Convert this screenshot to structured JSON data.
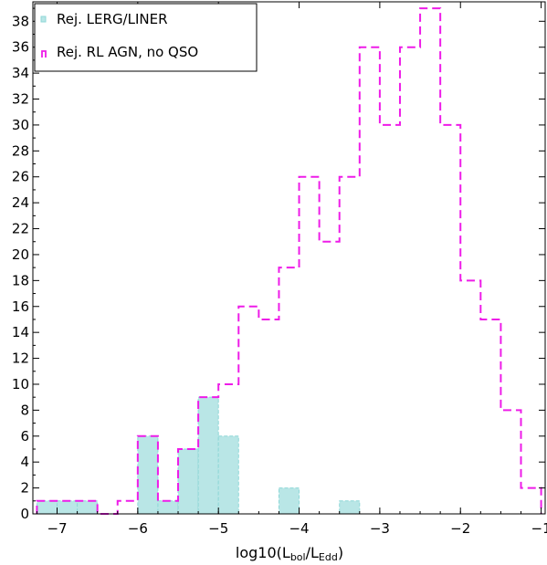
{
  "chart_data": {
    "type": "histogram",
    "xlabel": {
      "main": "log10(L",
      "sub1": "bol",
      "mid": "/L",
      "sub2": "Edd",
      "end": ")"
    },
    "ylabel": "",
    "xlim": [
      -7.3,
      -0.95
    ],
    "ylim": [
      0,
      39.5
    ],
    "xticks": [
      -7,
      -6,
      -5,
      -4,
      -3,
      -2,
      -1
    ],
    "xtick_labels": [
      "−7",
      "−6",
      "−5",
      "−4",
      "−3",
      "−2",
      "−1"
    ],
    "yticks": [
      0,
      2,
      4,
      6,
      8,
      10,
      12,
      14,
      16,
      18,
      20,
      22,
      24,
      26,
      28,
      30,
      32,
      34,
      36,
      38
    ],
    "ytick_labels": [
      "0",
      "2",
      "4",
      "6",
      "8",
      "10",
      "12",
      "14",
      "16",
      "18",
      "20",
      "22",
      "24",
      "26",
      "28",
      "30",
      "32",
      "34",
      "36",
      "38"
    ],
    "bin_edges": [
      -7.25,
      -7.0,
      -6.75,
      -6.5,
      -6.25,
      -6.0,
      -5.75,
      -5.5,
      -5.25,
      -5.0,
      -4.75,
      -4.5,
      -4.25,
      -4.0,
      -3.75,
      -3.5,
      -3.25,
      -3.0,
      -2.75,
      -2.5,
      -2.25,
      -2.0,
      -1.75,
      -1.5,
      -1.25,
      -1.0
    ],
    "series": [
      {
        "name": "Rej. LERG/LINER",
        "style": "filled",
        "color": "#8fd7d7",
        "fill": "#b9e6e6",
        "counts": [
          1,
          1,
          1,
          0,
          0,
          6,
          1,
          5,
          9,
          6,
          0,
          0,
          2,
          0,
          0,
          1,
          0,
          0,
          0,
          0,
          0,
          0,
          0,
          0,
          0
        ]
      },
      {
        "name": "Rej. RL AGN, no QSO",
        "style": "dashed-step",
        "color": "#ee1ce8",
        "counts": [
          1,
          1,
          1,
          0,
          1,
          6,
          1,
          5,
          9,
          10,
          16,
          15,
          19,
          26,
          21,
          26,
          36,
          30,
          36,
          39,
          30,
          18,
          15,
          8,
          2
        ]
      }
    ],
    "legend": {
      "position": "top-left"
    },
    "grid": false
  }
}
